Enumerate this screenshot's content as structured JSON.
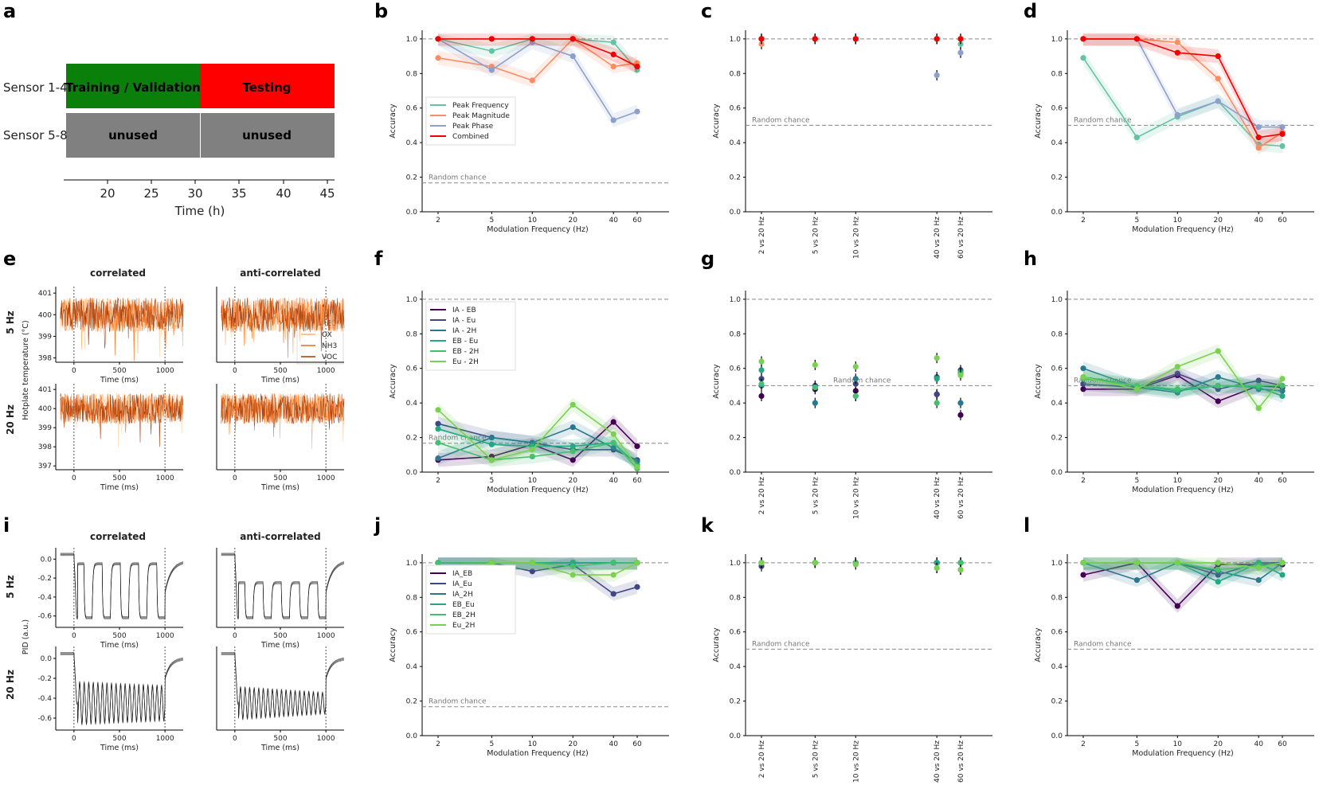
{
  "panel_letters": {
    "a": "a",
    "b": "b",
    "c": "c",
    "d": "d",
    "e": "e",
    "f": "f",
    "g": "g",
    "h": "h",
    "i": "i",
    "j": "j",
    "k": "k",
    "l": "l"
  },
  "common": {
    "ylabel": "Accuracy",
    "xlabel_freq": "Modulation Frequency (Hz)",
    "random_chance": "Random chance",
    "time_xlabel": "Time (ms)",
    "hz5": "5 Hz",
    "hz20": "20 Hz",
    "correlated": "correlated",
    "anti_correlated": "anti-correlated",
    "hotplate_ylabel": "Hotplate temperature (°C)",
    "pid_ylabel": "PID (a.u.)"
  },
  "panel_a": {
    "row1": "Sensor 1-4",
    "row2": "Sensor 5-8",
    "training": "Training / Validation",
    "testing": "Testing",
    "unused": "unused",
    "xlabel": "Time (h)",
    "ticks": [
      "20",
      "25",
      "30",
      "35",
      "40",
      "45"
    ],
    "colors": {
      "training": "#0a800a",
      "testing": "#ff0000",
      "unused": "#808080"
    }
  },
  "panel_e": {
    "legend": [
      "RED",
      "OX",
      "NH3",
      "VOC"
    ],
    "yticks": [
      "401",
      "400",
      "399",
      "398"
    ],
    "yticks_lower": [
      "401",
      "400",
      "399",
      "398",
      "397"
    ]
  },
  "panel_i": {
    "yticks": [
      "0.0",
      "-0.2",
      "-0.4",
      "-0.6"
    ]
  },
  "chart_data": [
    {
      "panel": "b",
      "type": "line",
      "xlabel": "Modulation Frequency (Hz)",
      "ylabel": "Accuracy",
      "x": [
        2,
        5,
        10,
        20,
        40,
        60
      ],
      "ylim": [
        0,
        1.05
      ],
      "chance": 0.167,
      "series": [
        {
          "name": "Peak Frequency",
          "color": "#66c2a5",
          "values": [
            1.0,
            0.93,
            1.0,
            1.0,
            0.98,
            0.82
          ]
        },
        {
          "name": "Peak Magnitude",
          "color": "#fc8d62",
          "values": [
            0.89,
            0.84,
            0.76,
            1.0,
            0.84,
            0.86
          ]
        },
        {
          "name": "Peak Phase",
          "color": "#8da0cb",
          "values": [
            1.0,
            0.82,
            0.98,
            0.9,
            0.53,
            0.58
          ]
        },
        {
          "name": "Combined",
          "color": "#f00000",
          "values": [
            1.0,
            1.0,
            1.0,
            1.0,
            0.91,
            0.84
          ]
        }
      ]
    },
    {
      "panel": "c",
      "type": "scatter",
      "ylabel": "Accuracy",
      "ylim": [
        0,
        1.05
      ],
      "chance": 0.5,
      "categories": [
        "2 vs 20 Hz",
        "5 vs 20 Hz",
        "10 vs 20 Hz",
        "40 vs 20 Hz",
        "60 vs 20 Hz"
      ],
      "series": [
        {
          "name": "Peak Frequency",
          "color": "#66c2a5",
          "values": [
            1.0,
            1.0,
            1.0,
            1.0,
            0.97
          ]
        },
        {
          "name": "Peak Magnitude",
          "color": "#fc8d62",
          "values": [
            0.97,
            1.0,
            1.0,
            1.0,
            1.0
          ]
        },
        {
          "name": "Peak Phase",
          "color": "#8da0cb",
          "values": [
            1.0,
            1.0,
            1.0,
            0.79,
            0.92
          ]
        },
        {
          "name": "Combined",
          "color": "#f00000",
          "values": [
            1.0,
            1.0,
            1.0,
            1.0,
            1.0
          ]
        }
      ]
    },
    {
      "panel": "d",
      "type": "line",
      "xlabel": "Modulation Frequency (Hz)",
      "ylabel": "Accuracy",
      "x": [
        2,
        5,
        10,
        20,
        40,
        60
      ],
      "ylim": [
        0,
        1.05
      ],
      "chance": 0.5,
      "series": [
        {
          "name": "Peak Frequency",
          "color": "#66c2a5",
          "values": [
            0.89,
            0.43,
            0.55,
            0.64,
            0.39,
            0.38
          ]
        },
        {
          "name": "Peak Magnitude",
          "color": "#fc8d62",
          "values": [
            1.0,
            1.0,
            0.98,
            0.77,
            0.37,
            0.46
          ]
        },
        {
          "name": "Peak Phase",
          "color": "#8da0cb",
          "values": [
            1.0,
            1.0,
            0.56,
            0.64,
            0.49,
            0.49
          ]
        },
        {
          "name": "Combined",
          "color": "#f00000",
          "values": [
            1.0,
            1.0,
            0.92,
            0.9,
            0.43,
            0.45
          ]
        }
      ]
    },
    {
      "panel": "f",
      "type": "line",
      "xlabel": "Modulation Frequency (Hz)",
      "ylabel": "Accuracy",
      "x": [
        2,
        5,
        10,
        20,
        40,
        60
      ],
      "ylim": [
        0,
        1.05
      ],
      "chance": 0.167,
      "series": [
        {
          "name": "IA - EB",
          "color": "#440154",
          "values": [
            0.07,
            0.09,
            0.16,
            0.07,
            0.29,
            0.15
          ]
        },
        {
          "name": "IA - Eu",
          "color": "#414487",
          "values": [
            0.28,
            0.2,
            0.17,
            0.13,
            0.13,
            0.07
          ]
        },
        {
          "name": "IA - 2H",
          "color": "#2a788e",
          "values": [
            0.08,
            0.2,
            0.17,
            0.26,
            0.14,
            0.06
          ]
        },
        {
          "name": "EB - Eu",
          "color": "#22a884",
          "values": [
            0.25,
            0.16,
            0.15,
            0.15,
            0.17,
            0.04
          ]
        },
        {
          "name": "EB - 2H",
          "color": "#44bf70",
          "values": [
            0.17,
            0.07,
            0.09,
            0.12,
            0.17,
            0.02
          ]
        },
        {
          "name": "Eu - 2H",
          "color": "#7ad151",
          "values": [
            0.36,
            0.07,
            0.13,
            0.39,
            0.22,
            0.03
          ]
        }
      ]
    },
    {
      "panel": "g",
      "type": "scatter",
      "ylabel": "Accuracy",
      "ylim": [
        0,
        1.05
      ],
      "chance": 0.5,
      "categories": [
        "2 vs 20 Hz",
        "5 vs 20 Hz",
        "10 vs 20 Hz",
        "40 vs 20 Hz",
        "60 vs 20 Hz"
      ],
      "series": [
        {
          "name": "IA - EB",
          "color": "#440154",
          "values": [
            0.44,
            0.48,
            0.47,
            0.45,
            0.33
          ]
        },
        {
          "name": "IA - Eu",
          "color": "#414487",
          "values": [
            0.54,
            0.5,
            0.51,
            0.45,
            0.59
          ]
        },
        {
          "name": "IA - 2H",
          "color": "#2a788e",
          "values": [
            0.5,
            0.4,
            0.54,
            0.55,
            0.4
          ]
        },
        {
          "name": "EB - Eu",
          "color": "#22a884",
          "values": [
            0.59,
            0.49,
            0.44,
            0.54,
            0.58
          ]
        },
        {
          "name": "EB - 2H",
          "color": "#44bf70",
          "values": [
            0.51,
            0.49,
            0.44,
            0.4,
            0.57
          ]
        },
        {
          "name": "Eu - 2H",
          "color": "#7ad151",
          "values": [
            0.64,
            0.62,
            0.61,
            0.66,
            0.56
          ]
        }
      ]
    },
    {
      "panel": "h",
      "type": "line",
      "xlabel": "Modulation Frequency (Hz)",
      "ylabel": "Accuracy",
      "x": [
        2,
        5,
        10,
        20,
        40,
        60
      ],
      "ylim": [
        0,
        1.05
      ],
      "chance": 0.5,
      "series": [
        {
          "name": "IA - EB",
          "color": "#440154",
          "values": [
            0.48,
            0.48,
            0.56,
            0.41,
            0.5,
            0.49
          ]
        },
        {
          "name": "IA - Eu",
          "color": "#414487",
          "values": [
            0.51,
            0.49,
            0.57,
            0.48,
            0.53,
            0.5
          ]
        },
        {
          "name": "IA - 2H",
          "color": "#2a788e",
          "values": [
            0.6,
            0.49,
            0.46,
            0.55,
            0.48,
            0.47
          ]
        },
        {
          "name": "EB - Eu",
          "color": "#22a884",
          "values": [
            0.55,
            0.5,
            0.47,
            0.5,
            0.49,
            0.44
          ]
        },
        {
          "name": "EB - 2H",
          "color": "#44bf70",
          "values": [
            0.54,
            0.5,
            0.48,
            0.5,
            0.5,
            0.5
          ]
        },
        {
          "name": "Eu - 2H",
          "color": "#7ad151",
          "values": [
            0.55,
            0.48,
            0.61,
            0.7,
            0.37,
            0.54
          ]
        }
      ]
    },
    {
      "panel": "j",
      "type": "line",
      "xlabel": "Modulation Frequency (Hz)",
      "ylabel": "Accuracy",
      "x": [
        2,
        5,
        10,
        20,
        40,
        60
      ],
      "ylim": [
        0,
        1.05
      ],
      "chance": 0.167,
      "series": [
        {
          "name": "IA_EB",
          "color": "#440154",
          "values": [
            1.0,
            1.0,
            1.0,
            1.0,
            1.0,
            1.0
          ]
        },
        {
          "name": "IA_Eu",
          "color": "#414487",
          "values": [
            1.0,
            1.0,
            0.95,
            0.99,
            0.82,
            0.86
          ]
        },
        {
          "name": "IA_2H",
          "color": "#2a788e",
          "values": [
            1.0,
            1.0,
            1.0,
            1.0,
            1.0,
            1.0
          ]
        },
        {
          "name": "EB_Eu",
          "color": "#22a884",
          "values": [
            1.0,
            1.0,
            1.0,
            1.0,
            1.0,
            1.0
          ]
        },
        {
          "name": "EB_2H",
          "color": "#44bf70",
          "values": [
            1.0,
            1.0,
            1.0,
            0.98,
            1.0,
            1.0
          ]
        },
        {
          "name": "Eu_2H",
          "color": "#7ad151",
          "values": [
            0.93,
            1.0,
            1.0,
            0.93,
            0.93,
            1.0
          ]
        }
      ]
    },
    {
      "panel": "k",
      "type": "scatter",
      "ylabel": "Accuracy",
      "ylim": [
        0,
        1.05
      ],
      "chance": 0.5,
      "categories": [
        "2 vs 20 Hz",
        "5 vs 20 Hz",
        "10 vs 20 Hz",
        "40 vs 20 Hz",
        "60 vs 20 Hz"
      ],
      "series": [
        {
          "name": "IA_EB",
          "color": "#440154",
          "values": [
            1.0,
            1.0,
            1.0,
            1.0,
            1.0
          ]
        },
        {
          "name": "IA_Eu",
          "color": "#414487",
          "values": [
            0.98,
            1.0,
            1.0,
            1.0,
            0.96
          ]
        },
        {
          "name": "IA_2H",
          "color": "#2a788e",
          "values": [
            1.0,
            1.0,
            1.0,
            1.0,
            1.0
          ]
        },
        {
          "name": "EB_Eu",
          "color": "#22a884",
          "values": [
            1.0,
            1.0,
            1.0,
            1.0,
            1.0
          ]
        },
        {
          "name": "EB_2H",
          "color": "#44bf70",
          "values": [
            1.0,
            1.0,
            1.0,
            0.97,
            1.0
          ]
        },
        {
          "name": "Eu_2H",
          "color": "#7ad151",
          "values": [
            1.0,
            1.0,
            0.99,
            0.97,
            0.96
          ]
        }
      ]
    },
    {
      "panel": "l",
      "type": "line",
      "xlabel": "Modulation Frequency (Hz)",
      "ylabel": "Accuracy",
      "x": [
        2,
        5,
        10,
        20,
        40,
        60
      ],
      "ylim": [
        0,
        1.05
      ],
      "chance": 0.5,
      "series": [
        {
          "name": "IA_EB",
          "color": "#440154",
          "values": [
            0.93,
            1.0,
            0.75,
            0.99,
            0.99,
            0.99
          ]
        },
        {
          "name": "IA_Eu",
          "color": "#414487",
          "values": [
            1.0,
            1.0,
            1.0,
            0.93,
            1.0,
            1.0
          ]
        },
        {
          "name": "IA_2H",
          "color": "#2a788e",
          "values": [
            1.0,
            0.9,
            1.0,
            0.95,
            0.9,
            1.0
          ]
        },
        {
          "name": "EB_Eu",
          "color": "#22a884",
          "values": [
            1.0,
            1.0,
            1.0,
            0.89,
            1.0,
            0.93
          ]
        },
        {
          "name": "EB_2H",
          "color": "#44bf70",
          "values": [
            1.0,
            1.0,
            1.0,
            0.96,
            0.98,
            1.0
          ]
        },
        {
          "name": "Eu_2H",
          "color": "#7ad151",
          "values": [
            1.0,
            1.0,
            1.0,
            1.0,
            0.97,
            1.0
          ]
        }
      ]
    }
  ]
}
